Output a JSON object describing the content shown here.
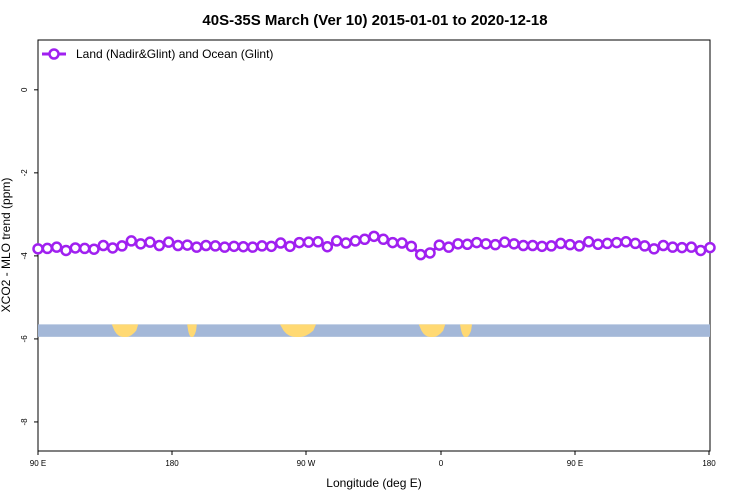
{
  "chart_data": {
    "type": "line",
    "title": "40S-35S March (Ver 10)   2015-01-01 to 2020-12-18",
    "xlabel": "Longitude (deg E)",
    "ylabel": "XCO2 - MLO trend (ppm)",
    "xlim": [
      90,
      450
    ],
    "ylim": [
      -8.7,
      1.2
    ],
    "x_ticks": [
      {
        "value": 90,
        "label": "90 E"
      },
      {
        "value": 180,
        "label": "180"
      },
      {
        "value": 270,
        "label": "90 W"
      },
      {
        "value": 360,
        "label": "0"
      },
      {
        "value": 450,
        "label": "90 E"
      },
      {
        "value": 540,
        "label": "180"
      }
    ],
    "y_ticks": [
      {
        "value": 0,
        "label": "0"
      },
      {
        "value": -2,
        "label": "-2"
      },
      {
        "value": -4,
        "label": "-4"
      },
      {
        "value": -6,
        "label": "-6"
      },
      {
        "value": -8,
        "label": "-8"
      }
    ],
    "legend": {
      "position": "top-left"
    },
    "series": [
      {
        "name": "Land (Nadir&Glint) and Ocean (Glint)",
        "color": "#a020f0",
        "marker": "open-circle",
        "points": [
          [
            90,
            -3.83
          ],
          [
            95,
            -3.82
          ],
          [
            100,
            -3.79
          ],
          [
            105,
            -3.87
          ],
          [
            110,
            -3.81
          ],
          [
            115,
            -3.82
          ],
          [
            120,
            -3.84
          ],
          [
            125,
            -3.75
          ],
          [
            130,
            -3.81
          ],
          [
            135,
            -3.76
          ],
          [
            140,
            -3.64
          ],
          [
            145,
            -3.71
          ],
          [
            150,
            -3.67
          ],
          [
            155,
            -3.75
          ],
          [
            160,
            -3.67
          ],
          [
            165,
            -3.75
          ],
          [
            170,
            -3.74
          ],
          [
            175,
            -3.79
          ],
          [
            180,
            -3.75
          ],
          [
            185,
            -3.76
          ],
          [
            190,
            -3.79
          ],
          [
            195,
            -3.77
          ],
          [
            200,
            -3.78
          ],
          [
            205,
            -3.79
          ],
          [
            210,
            -3.76
          ],
          [
            215,
            -3.77
          ],
          [
            220,
            -3.69
          ],
          [
            225,
            -3.77
          ],
          [
            230,
            -3.68
          ],
          [
            235,
            -3.67
          ],
          [
            240,
            -3.66
          ],
          [
            245,
            -3.78
          ],
          [
            250,
            -3.64
          ],
          [
            255,
            -3.69
          ],
          [
            260,
            -3.64
          ],
          [
            265,
            -3.6
          ],
          [
            270,
            -3.53
          ],
          [
            275,
            -3.6
          ],
          [
            280,
            -3.68
          ],
          [
            285,
            -3.69
          ],
          [
            290,
            -3.77
          ],
          [
            295,
            -3.97
          ],
          [
            300,
            -3.93
          ],
          [
            305,
            -3.74
          ],
          [
            310,
            -3.79
          ],
          [
            315,
            -3.71
          ],
          [
            320,
            -3.72
          ],
          [
            325,
            -3.68
          ],
          [
            330,
            -3.71
          ],
          [
            335,
            -3.73
          ],
          [
            340,
            -3.67
          ],
          [
            345,
            -3.71
          ],
          [
            350,
            -3.75
          ],
          [
            355,
            -3.75
          ],
          [
            360,
            -3.77
          ],
          [
            365,
            -3.76
          ],
          [
            370,
            -3.7
          ],
          [
            375,
            -3.73
          ],
          [
            380,
            -3.76
          ],
          [
            385,
            -3.66
          ],
          [
            390,
            -3.72
          ],
          [
            395,
            -3.7
          ],
          [
            400,
            -3.68
          ],
          [
            405,
            -3.66
          ],
          [
            410,
            -3.7
          ],
          [
            415,
            -3.76
          ],
          [
            420,
            -3.83
          ],
          [
            425,
            -3.75
          ],
          [
            430,
            -3.79
          ],
          [
            435,
            -3.8
          ],
          [
            440,
            -3.79
          ],
          [
            445,
            -3.87
          ],
          [
            450,
            -3.8
          ]
        ]
      }
    ],
    "land_band": {
      "y_range": [
        -5.65,
        -5.95
      ],
      "ocean_color": "#a4b8d8",
      "land_color": "#ffd973"
    }
  }
}
